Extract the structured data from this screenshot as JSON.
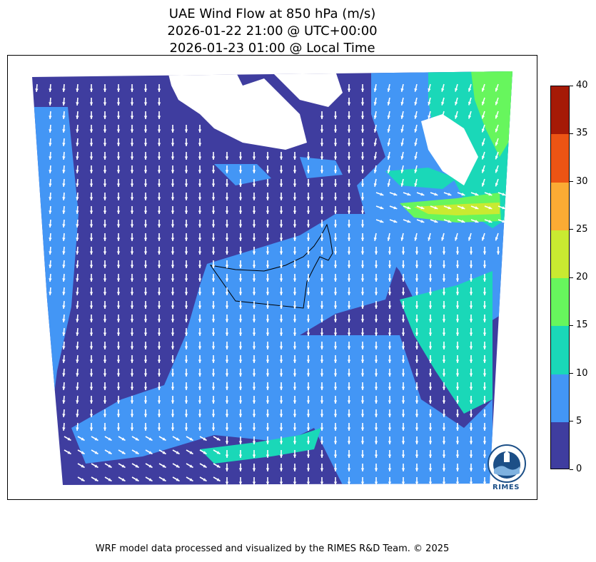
{
  "header": {
    "title_line1": "UAE Wind Flow at 850 hPa (m/s)",
    "title_line2": "2026-01-22 21:00 @ UTC+00:00",
    "title_line3": "2026-01-23 01:00 @ Local Time"
  },
  "colorbar": {
    "ticks": [
      "0",
      "5",
      "10",
      "15",
      "20",
      "25",
      "30",
      "35",
      "40"
    ],
    "colors": [
      "#3f3d9f",
      "#4396f5",
      "#1ad8b8",
      "#67f65d",
      "#c9ea31",
      "#fbab34",
      "#ec5414",
      "#a51a06"
    ]
  },
  "map": {
    "colors": {
      "calm": "#3f3d9f",
      "light": "#4396f5",
      "moderate": "#1ad8b8",
      "fresh": "#67f65d",
      "strong": "#c9ea31",
      "arrow": "#ffffff",
      "border": "#000000"
    }
  },
  "logo": {
    "text": "RIMES"
  },
  "footer": {
    "credit": "WRF model data processed and visualized by the RIMES R&D Team. © 2025"
  }
}
